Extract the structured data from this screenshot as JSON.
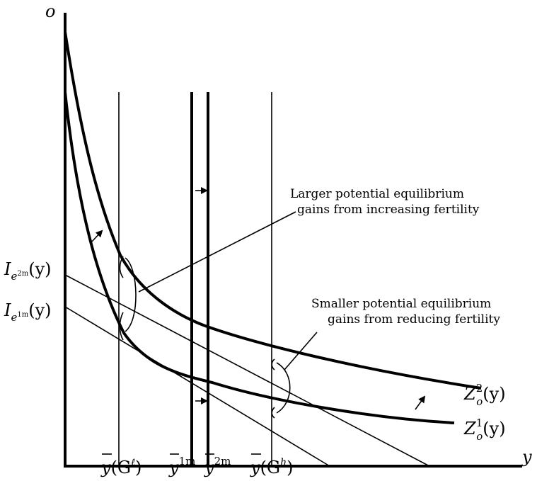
{
  "axes": {
    "y_axis_label": "o",
    "x_axis_label": "y"
  },
  "curves": {
    "upper": {
      "base": "Z",
      "sub": "o",
      "sup": "2",
      "arg": "(y)"
    },
    "lower": {
      "base": "Z",
      "sub": "o",
      "sup": "1",
      "arg": "(y)"
    }
  },
  "lines": {
    "upper": {
      "base": "I",
      "sub": "e",
      "sub_sup": "2m",
      "arg": "(y)"
    },
    "lower": {
      "base": "I",
      "sub": "e",
      "sub_sup": "1m",
      "arg": "(y)"
    }
  },
  "ticks": {
    "g_low": {
      "base": "y",
      "arg_open": "(G",
      "sup": "ℓ",
      "arg_close": ")"
    },
    "y1m": {
      "base": "y",
      "sup": "1m"
    },
    "y2m": {
      "base": "y",
      "sup": "2m"
    },
    "g_high": {
      "base": "y",
      "arg_open": "(G",
      "sup": "h",
      "arg_close": ")"
    }
  },
  "annotations": {
    "larger_line1": "Larger potential equilibrium",
    "larger_line2": "gains from increasing fertility",
    "smaller_line1": "Smaller potential equilibrium",
    "smaller_line2": "gains from reducing fertility"
  },
  "colors": {
    "ink": "#000000",
    "background": "#ffffff"
  }
}
